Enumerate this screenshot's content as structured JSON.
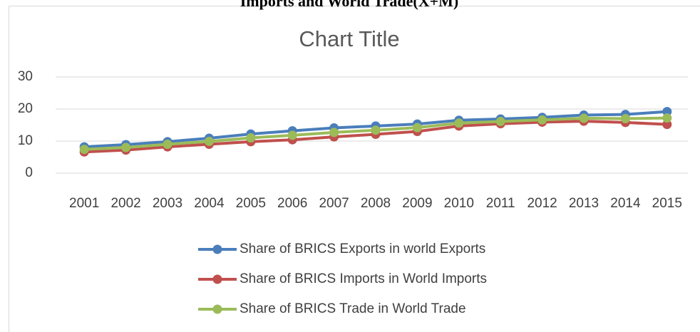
{
  "heading": "Imports and World Trade(X+M)",
  "chart_data": {
    "type": "line",
    "title": "Chart Title",
    "categories": [
      "2001",
      "2002",
      "2003",
      "2004",
      "2005",
      "2006",
      "2007",
      "2008",
      "2009",
      "2010",
      "2011",
      "2012",
      "2013",
      "2014",
      "2015"
    ],
    "series": [
      {
        "name": "Share of BRICS Exports in world Exports",
        "color": "#4a7ebb",
        "values": [
          8.2,
          8.9,
          9.8,
          10.9,
          12.2,
          13.2,
          14.1,
          14.7,
          15.3,
          16.5,
          16.9,
          17.4,
          18.1,
          18.3,
          19.2
        ]
      },
      {
        "name": "Share of BRICS  Imports in World Imports",
        "color": "#c0504d",
        "values": [
          6.6,
          7.2,
          8.2,
          9.0,
          9.8,
          10.4,
          11.3,
          12.1,
          13.0,
          14.7,
          15.4,
          15.9,
          16.2,
          15.8,
          15.2
        ]
      },
      {
        "name": "Share of  BRICS Trade in World Trade",
        "color": "#9bbb59",
        "values": [
          7.4,
          8.0,
          9.0,
          9.9,
          11.0,
          11.8,
          12.7,
          13.4,
          14.2,
          15.6,
          16.1,
          16.6,
          17.1,
          17.0,
          17.2
        ]
      }
    ],
    "ylim": [
      0,
      30
    ],
    "yticks": [
      0,
      10,
      20,
      30
    ],
    "grid": true,
    "legend": "bottom"
  }
}
